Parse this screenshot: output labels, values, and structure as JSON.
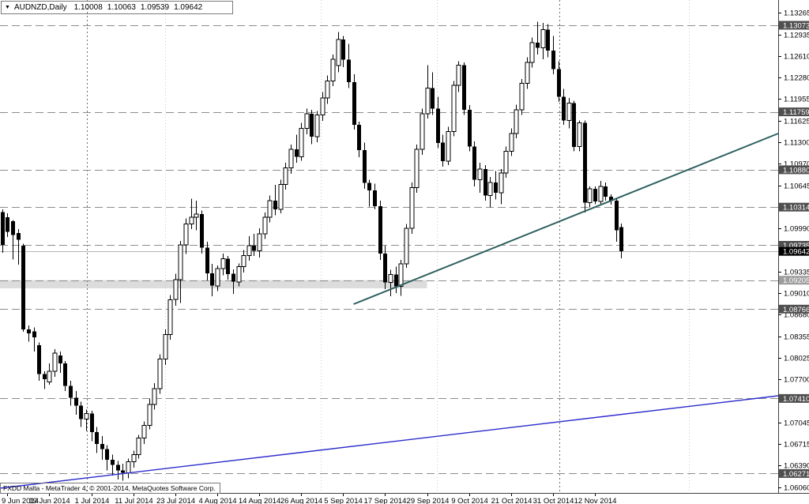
{
  "title": {
    "symbol_period": "AUDNZD,Daily",
    "open": "1.10008",
    "high": "1.10063",
    "low": "1.09539",
    "close": "1.09642"
  },
  "copyright": "FXDD Malta - MetaTrader 4, © 2001-2014, MetaQuotes Software Corp.",
  "colors": {
    "background": "#ffffff",
    "foreground": "#000000",
    "bull_body": "#ffffff",
    "bear_body": "#000000",
    "grid_light": "#c9c9c9",
    "grid_dark": "#6e6e6e",
    "level_line": "#8c8c8c",
    "level_label_bg_dark": "#4f4f4f",
    "level_label_bg_light": "#9d9d9d",
    "current_price_label_bg": "#000000",
    "level_label_text": "#ffffff",
    "bid_line": "#b6b6b6",
    "teal": "#2e5f5f",
    "blue": "#2b2bcd",
    "zone_fill": "#dcdcdc",
    "axis_line": "#404040"
  },
  "chart_data": {
    "type": "candlestick-ohlc",
    "symbol": "AUDNZD",
    "timeframe": "Daily",
    "last_bar": {
      "open": 1.10008,
      "high": 1.10063,
      "low": 1.09539,
      "close": 1.09642
    },
    "y_axis": {
      "min": 1.0606,
      "max": 1.13265,
      "ticks": [
        1.13265,
        1.12935,
        1.1261,
        1.1228,
        1.11955,
        1.11625,
        1.113,
        1.1097,
        1.10645,
        1.0999,
        1.09335,
        1.0901,
        1.0868,
        1.08355,
        1.08025,
        1.077,
        1.07045,
        1.06715,
        1.0639,
        1.0606
      ]
    },
    "x_ticks": [
      {
        "label": "9 Jun 2014",
        "index": 1
      },
      {
        "label": "19 Jun 2014",
        "index": 9
      },
      {
        "label": "1 Jul 2014",
        "index": 17
      },
      {
        "label": "11 Jul 2014",
        "index": 25
      },
      {
        "label": "23 Jul 2014",
        "index": 33
      },
      {
        "label": "4 Aug 2014",
        "index": 41
      },
      {
        "label": "14 Aug 2014",
        "index": 49
      },
      {
        "label": "26 Aug 2014",
        "index": 57
      },
      {
        "label": "5 Sep 2014",
        "index": 65
      },
      {
        "label": "17 Sep 2014",
        "index": 73
      },
      {
        "label": "29 Sep 2014",
        "index": 81
      },
      {
        "label": "9 Oct 2014",
        "index": 89
      },
      {
        "label": "21 Oct 2014",
        "index": 97
      },
      {
        "label": "31 Oct 2014",
        "index": 105
      },
      {
        "label": "12 Nov 2014",
        "index": 113
      }
    ],
    "grid_verticals": [
      {
        "index": 16.2,
        "shade": "dark"
      },
      {
        "index": 31.1,
        "shade": "light"
      },
      {
        "index": 60.7,
        "shade": "light"
      },
      {
        "index": 82.9,
        "shade": "light"
      },
      {
        "index": 106.2,
        "shade": "dark"
      },
      {
        "index": 130.9,
        "shade": "light"
      }
    ],
    "levels": [
      {
        "price": 1.13073,
        "label": "1.13073",
        "style": "dark"
      },
      {
        "price": 1.11759,
        "label": "1.11759",
        "style": "dark"
      },
      {
        "price": 1.1088,
        "label": "1.10880",
        "style": "dark"
      },
      {
        "price": 1.10314,
        "label": "1.10314",
        "style": "dark"
      },
      {
        "price": 1.09735,
        "label": "1.09735",
        "style": "dark"
      },
      {
        "price": 1.09205,
        "label": "1.09205",
        "style": "light"
      },
      {
        "price": 1.08766,
        "label": "1.08766",
        "style": "dark"
      },
      {
        "price": 1.0741,
        "label": "1.07410",
        "style": "dark"
      },
      {
        "price": 1.06271,
        "label": "1.06271",
        "style": "dark"
      }
    ],
    "current_price": {
      "value": 1.09642,
      "label": "1.09642"
    },
    "zone_rectangle": {
      "price_top": 1.09205,
      "price_bottom": 1.09081,
      "from_index": -0.5,
      "to_index": 81
    },
    "trendlines": [
      {
        "name": "support-trendline-teal",
        "from_index": 67,
        "from_price": 1.08841,
        "to_index": 148,
        "to_price": 1.11431,
        "color_key": "teal",
        "width": 2
      },
      {
        "name": "long-term-trendline-blue",
        "from_index": -0.5,
        "from_price": 1.06048,
        "to_index": 148,
        "to_price": 1.07451,
        "color_key": "blue",
        "width": 1.4
      }
    ],
    "candles": [
      [
        1.1024,
        1.1028,
        1.0962,
        1.0974
      ],
      [
        1.1016,
        1.1022,
        1.0986,
        1.0994
      ],
      [
        1.101,
        1.1012,
        1.0952,
        1.0989
      ],
      [
        1.0992,
        1.0998,
        1.0944,
        1.0982
      ],
      [
        1.0973,
        1.0976,
        1.0842,
        1.0846
      ],
      [
        1.0846,
        1.0852,
        1.0827,
        1.084
      ],
      [
        1.0843,
        1.0849,
        1.0812,
        1.0834
      ],
      [
        1.0822,
        1.0826,
        1.0768,
        1.0778
      ],
      [
        1.0778,
        1.0782,
        1.0755,
        1.077
      ],
      [
        1.0766,
        1.0794,
        1.0762,
        1.0782
      ],
      [
        1.0782,
        1.0816,
        1.0774,
        1.081
      ],
      [
        1.0806,
        1.0812,
        1.078,
        1.0794
      ],
      [
        1.0794,
        1.0798,
        1.0752,
        1.076
      ],
      [
        1.076,
        1.0768,
        1.073,
        1.0742
      ],
      [
        1.0742,
        1.0752,
        1.0716,
        1.073
      ],
      [
        1.073,
        1.0736,
        1.0698,
        1.071
      ],
      [
        1.071,
        1.0724,
        1.0692,
        1.0718
      ],
      [
        1.0718,
        1.0722,
        1.0676,
        1.069
      ],
      [
        1.069,
        1.0698,
        1.0658,
        1.0672
      ],
      [
        1.0672,
        1.0684,
        1.0648,
        1.0664
      ],
      [
        1.0664,
        1.067,
        1.0632,
        1.0648
      ],
      [
        1.0648,
        1.0656,
        1.0624,
        1.064
      ],
      [
        1.064,
        1.0646,
        1.0618,
        1.0632
      ],
      [
        1.0632,
        1.0642,
        1.0616,
        1.0628
      ],
      [
        1.0628,
        1.065,
        1.062,
        1.0645
      ],
      [
        1.0645,
        1.0662,
        1.0636,
        1.0656
      ],
      [
        1.0656,
        1.0686,
        1.065,
        1.0681
      ],
      [
        1.0681,
        1.0706,
        1.0672,
        1.07
      ],
      [
        1.07,
        1.074,
        1.0694,
        1.0732
      ],
      [
        1.0732,
        1.0764,
        1.0724,
        1.0756
      ],
      [
        1.0756,
        1.0808,
        1.0748,
        1.0801
      ],
      [
        1.0801,
        1.0846,
        1.0792,
        1.0838
      ],
      [
        1.0838,
        1.0898,
        1.083,
        1.0891
      ],
      [
        1.0891,
        1.093,
        1.0882,
        1.0921
      ],
      [
        1.0921,
        1.098,
        1.0886,
        1.0974
      ],
      [
        1.0974,
        1.1014,
        1.096,
        1.1006
      ],
      [
        1.1006,
        1.1044,
        1.0998,
        1.1016
      ],
      [
        1.1016,
        1.1041,
        1.0996,
        1.1021
      ],
      [
        1.1021,
        1.1026,
        1.0961,
        1.097
      ],
      [
        1.097,
        1.0979,
        1.092,
        1.0931
      ],
      [
        1.0931,
        1.0945,
        1.0896,
        1.0912
      ],
      [
        1.0912,
        1.0943,
        1.0904,
        1.0938
      ],
      [
        1.0938,
        1.0961,
        1.0928,
        1.0953
      ],
      [
        1.0953,
        1.0957,
        1.0921,
        1.093
      ],
      [
        1.093,
        1.0937,
        1.09,
        1.0918
      ],
      [
        1.0918,
        1.0946,
        1.0911,
        1.0941
      ],
      [
        1.0941,
        1.0966,
        1.0932,
        1.0958
      ],
      [
        1.0958,
        1.0987,
        1.095,
        1.0973
      ],
      [
        1.0973,
        1.0991,
        1.0957,
        1.0965
      ],
      [
        1.0965,
        1.0999,
        1.0955,
        1.0991
      ],
      [
        1.0991,
        1.1023,
        1.0983,
        1.1016
      ],
      [
        1.1016,
        1.1049,
        1.1008,
        1.1041
      ],
      [
        1.1041,
        1.1065,
        1.1019,
        1.1028
      ],
      [
        1.1028,
        1.1073,
        1.1022,
        1.1066
      ],
      [
        1.1066,
        1.1099,
        1.1058,
        1.1091
      ],
      [
        1.1091,
        1.1126,
        1.1082,
        1.1119
      ],
      [
        1.1119,
        1.1141,
        1.1099,
        1.1108
      ],
      [
        1.1108,
        1.1159,
        1.1102,
        1.1151
      ],
      [
        1.1151,
        1.1181,
        1.1142,
        1.1173
      ],
      [
        1.1173,
        1.1179,
        1.1127,
        1.1138
      ],
      [
        1.1138,
        1.1177,
        1.113,
        1.1171
      ],
      [
        1.1171,
        1.1206,
        1.1162,
        1.1197
      ],
      [
        1.1197,
        1.1231,
        1.1188,
        1.1223
      ],
      [
        1.1223,
        1.1263,
        1.1215,
        1.1256
      ],
      [
        1.1246,
        1.1297,
        1.1236,
        1.1286
      ],
      [
        1.1286,
        1.1291,
        1.1244,
        1.1255
      ],
      [
        1.1255,
        1.1279,
        1.1212,
        1.1221
      ],
      [
        1.1221,
        1.1233,
        1.1149,
        1.1156
      ],
      [
        1.1156,
        1.1161,
        1.1107,
        1.1118
      ],
      [
        1.1118,
        1.1129,
        1.1059,
        1.1068
      ],
      [
        1.1068,
        1.1073,
        1.1032,
        1.1057
      ],
      [
        1.1057,
        1.1067,
        1.1028,
        1.1033
      ],
      [
        1.1033,
        1.1041,
        1.0951,
        1.0961
      ],
      [
        1.0961,
        1.0973,
        1.0907,
        1.0917
      ],
      [
        1.0917,
        1.0936,
        1.0896,
        1.0929
      ],
      [
        1.0929,
        1.0941,
        1.0901,
        1.0911
      ],
      [
        1.0911,
        1.0951,
        1.0897,
        1.0945
      ],
      [
        1.0945,
        1.1006,
        1.0939,
        1.0999
      ],
      [
        1.0999,
        1.1069,
        1.0991,
        1.1061
      ],
      [
        1.1061,
        1.1126,
        1.1053,
        1.1119
      ],
      [
        1.1119,
        1.1181,
        1.1111,
        1.1173
      ],
      [
        1.1173,
        1.1247,
        1.1166,
        1.1212
      ],
      [
        1.1212,
        1.1236,
        1.1171,
        1.1181
      ],
      [
        1.1181,
        1.1199,
        1.1121,
        1.1129
      ],
      [
        1.1129,
        1.1141,
        1.1093,
        1.1101
      ],
      [
        1.1101,
        1.1153,
        1.1095,
        1.1146
      ],
      [
        1.1146,
        1.1223,
        1.1139,
        1.1216
      ],
      [
        1.1216,
        1.1253,
        1.1206,
        1.1247
      ],
      [
        1.1247,
        1.1251,
        1.1171,
        1.1179
      ],
      [
        1.1179,
        1.1186,
        1.1116,
        1.1123
      ],
      [
        1.1123,
        1.1131,
        1.1063,
        1.1073
      ],
      [
        1.1073,
        1.1099,
        1.1053,
        1.1089
      ],
      [
        1.1089,
        1.1095,
        1.1041,
        1.1049
      ],
      [
        1.1049,
        1.1077,
        1.1031,
        1.1069
      ],
      [
        1.1069,
        1.1086,
        1.1043,
        1.1053
      ],
      [
        1.1053,
        1.1089,
        1.1036,
        1.1083
      ],
      [
        1.1083,
        1.1123,
        1.1076,
        1.1116
      ],
      [
        1.1116,
        1.1151,
        1.1109,
        1.1143
      ],
      [
        1.1143,
        1.1187,
        1.1136,
        1.1179
      ],
      [
        1.1179,
        1.1226,
        1.1171,
        1.1219
      ],
      [
        1.1219,
        1.1259,
        1.1211,
        1.1251
      ],
      [
        1.1251,
        1.1289,
        1.1243,
        1.1281
      ],
      [
        1.1281,
        1.1313,
        1.1263,
        1.1273
      ],
      [
        1.1273,
        1.1311,
        1.1256,
        1.1301
      ],
      [
        1.1301,
        1.1309,
        1.1259,
        1.1269
      ],
      [
        1.1269,
        1.1291,
        1.1233,
        1.1241
      ],
      [
        1.1241,
        1.1253,
        1.1191,
        1.1199
      ],
      [
        1.1199,
        1.1211,
        1.1156,
        1.1163
      ],
      [
        1.1163,
        1.1197,
        1.1151,
        1.1189
      ],
      [
        1.1189,
        1.1193,
        1.1116,
        1.1123
      ],
      [
        1.1123,
        1.1163,
        1.1116,
        1.1159
      ],
      [
        1.1159,
        1.1163,
        1.1023,
        1.1038
      ],
      [
        1.1038,
        1.1063,
        1.1031,
        1.1059
      ],
      [
        1.1059,
        1.1063,
        1.1036,
        1.104
      ],
      [
        1.104,
        1.1071,
        1.1035,
        1.1063
      ],
      [
        1.1063,
        1.1069,
        1.1041,
        1.1047
      ],
      [
        1.1047,
        1.1051,
        1.1035,
        1.1041
      ],
      [
        1.1041,
        1.1044,
        1.0979,
        1.0996
      ],
      [
        1.10008,
        1.10063,
        1.09539,
        1.09642
      ]
    ]
  }
}
